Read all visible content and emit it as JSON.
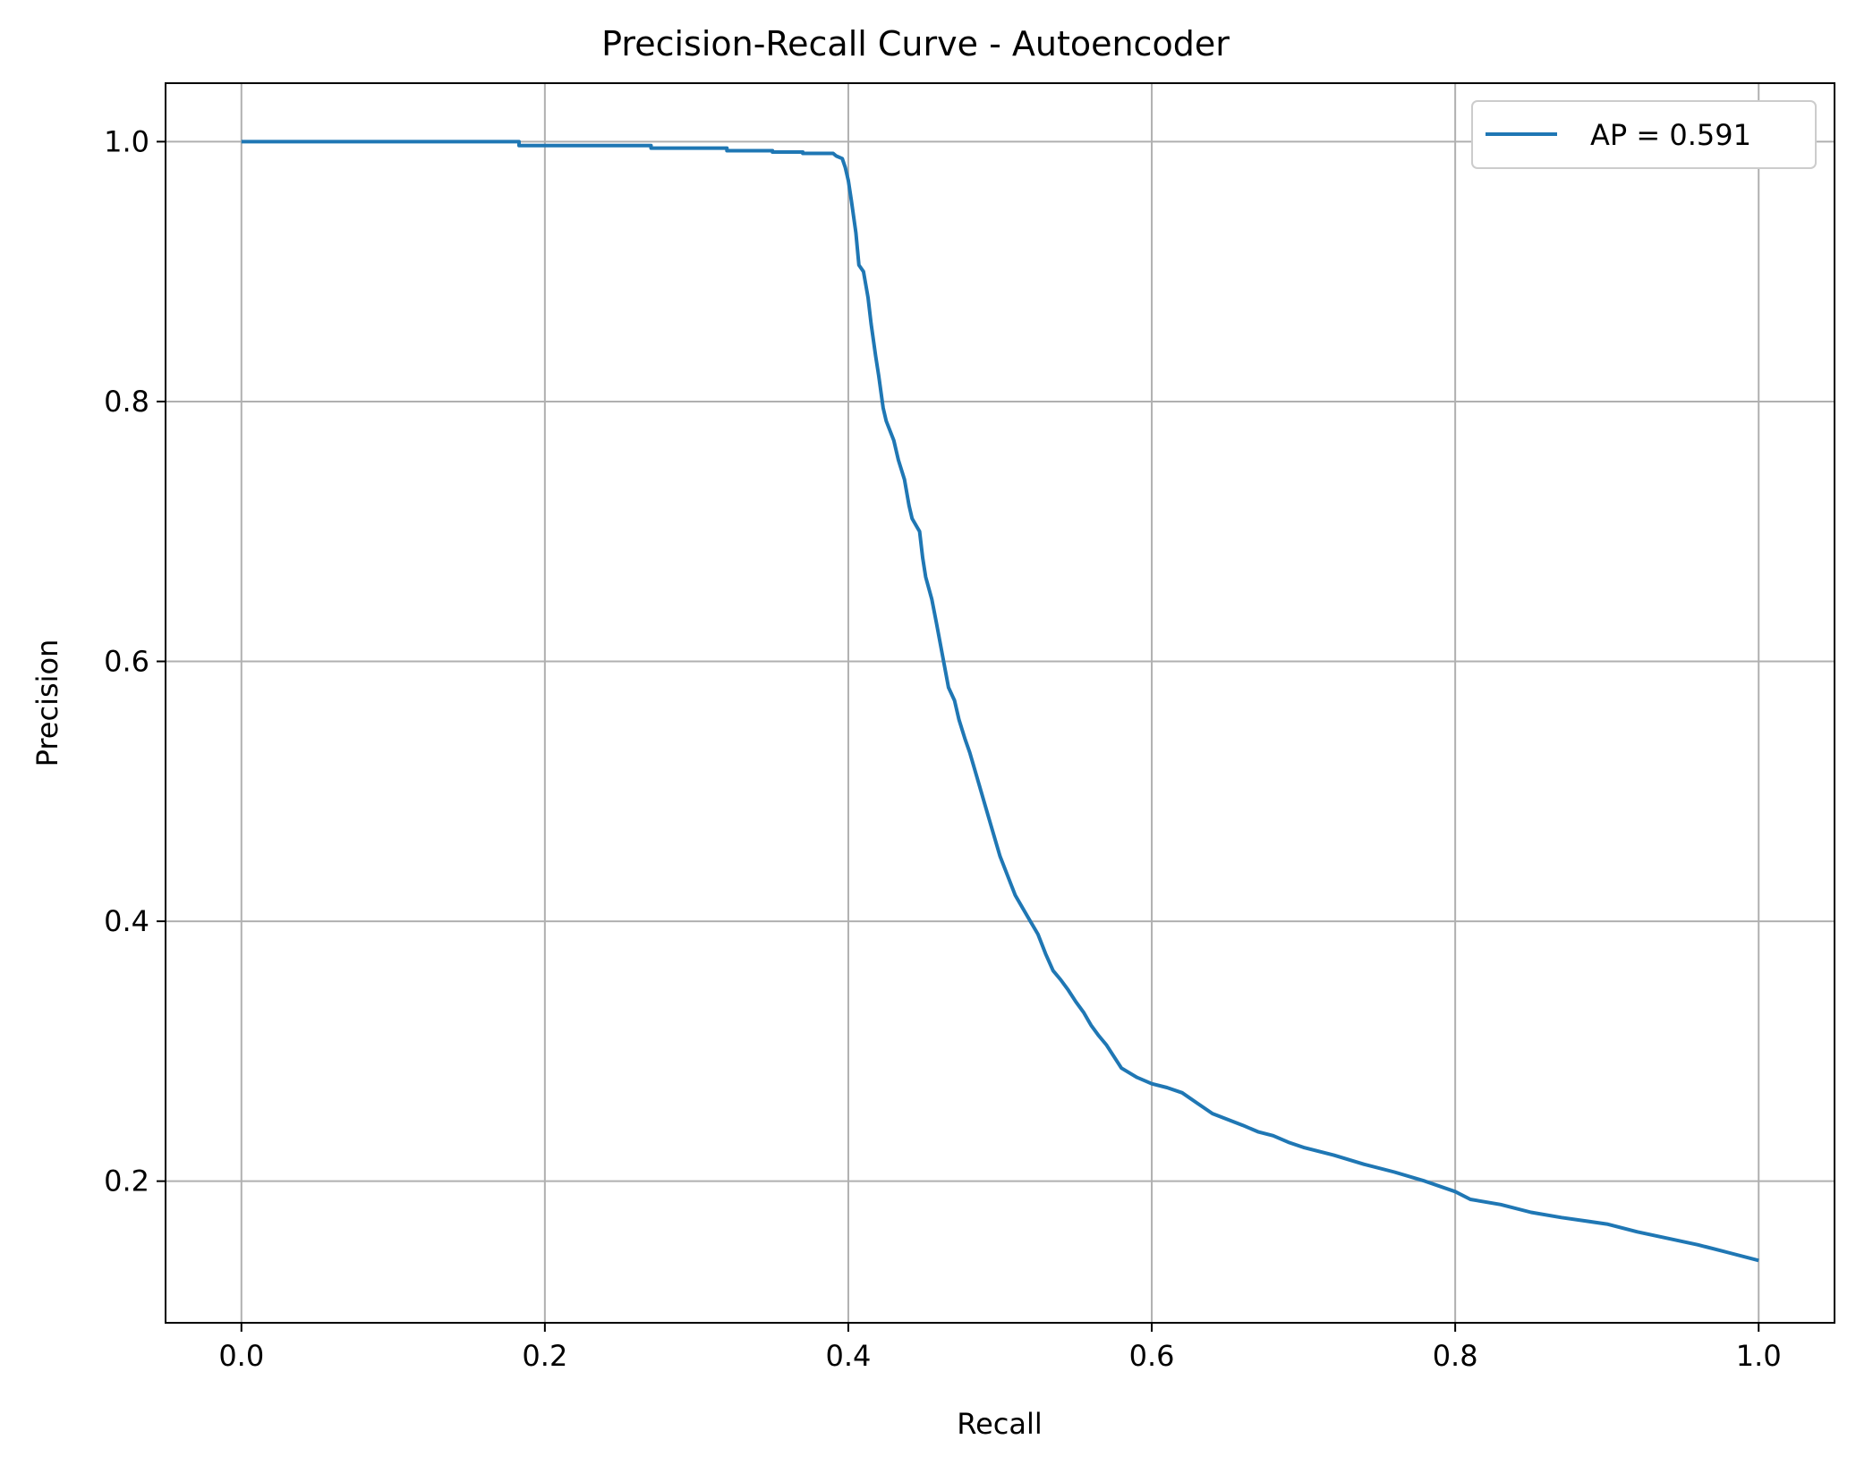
{
  "chart_data": {
    "type": "line",
    "title": "Precision-Recall Curve - Autoencoder",
    "xlabel": "Recall",
    "ylabel": "Precision",
    "xlim": [
      -0.05,
      1.05
    ],
    "ylim": [
      0.091,
      1.045
    ],
    "xticks": [
      0.0,
      0.2,
      0.4,
      0.6,
      0.8,
      1.0
    ],
    "xtick_labels": [
      "0.0",
      "0.2",
      "0.4",
      "0.6",
      "0.8",
      "1.0"
    ],
    "yticks": [
      0.2,
      0.4,
      0.6,
      0.8,
      1.0
    ],
    "ytick_labels": [
      "0.2",
      "0.4",
      "0.6",
      "0.8",
      "1.0"
    ],
    "grid": true,
    "legend_position": "top-right",
    "series": [
      {
        "name": "AP = 0.591",
        "color": "#1f77b4",
        "x": [
          0.0,
          0.183,
          0.183,
          0.27,
          0.27,
          0.32,
          0.32,
          0.35,
          0.35,
          0.37,
          0.37,
          0.39,
          0.392,
          0.396,
          0.398,
          0.4,
          0.402,
          0.405,
          0.407,
          0.41,
          0.413,
          0.415,
          0.418,
          0.42,
          0.423,
          0.425,
          0.43,
          0.433,
          0.437,
          0.44,
          0.442,
          0.447,
          0.449,
          0.451,
          0.455,
          0.458,
          0.462,
          0.466,
          0.47,
          0.473,
          0.477,
          0.48,
          0.485,
          0.49,
          0.495,
          0.5,
          0.505,
          0.51,
          0.515,
          0.52,
          0.525,
          0.53,
          0.535,
          0.54,
          0.545,
          0.55,
          0.555,
          0.56,
          0.565,
          0.57,
          0.58,
          0.59,
          0.6,
          0.61,
          0.62,
          0.63,
          0.64,
          0.66,
          0.67,
          0.68,
          0.69,
          0.7,
          0.72,
          0.74,
          0.76,
          0.78,
          0.8,
          0.81,
          0.83,
          0.85,
          0.87,
          0.9,
          0.92,
          0.94,
          0.96,
          0.98,
          1.0
        ],
        "y": [
          1.0,
          1.0,
          0.997,
          0.997,
          0.995,
          0.995,
          0.993,
          0.993,
          0.992,
          0.992,
          0.991,
          0.991,
          0.989,
          0.987,
          0.98,
          0.97,
          0.955,
          0.93,
          0.905,
          0.9,
          0.88,
          0.86,
          0.835,
          0.82,
          0.795,
          0.785,
          0.77,
          0.755,
          0.74,
          0.72,
          0.71,
          0.7,
          0.68,
          0.665,
          0.648,
          0.63,
          0.605,
          0.58,
          0.57,
          0.555,
          0.54,
          0.53,
          0.51,
          0.49,
          0.47,
          0.45,
          0.435,
          0.42,
          0.41,
          0.4,
          0.39,
          0.375,
          0.362,
          0.355,
          0.347,
          0.338,
          0.33,
          0.32,
          0.312,
          0.305,
          0.287,
          0.28,
          0.275,
          0.272,
          0.268,
          0.26,
          0.252,
          0.243,
          0.238,
          0.235,
          0.23,
          0.226,
          0.22,
          0.213,
          0.207,
          0.2,
          0.192,
          0.186,
          0.182,
          0.176,
          0.172,
          0.167,
          0.161,
          0.156,
          0.151,
          0.145,
          0.139
        ]
      }
    ]
  }
}
